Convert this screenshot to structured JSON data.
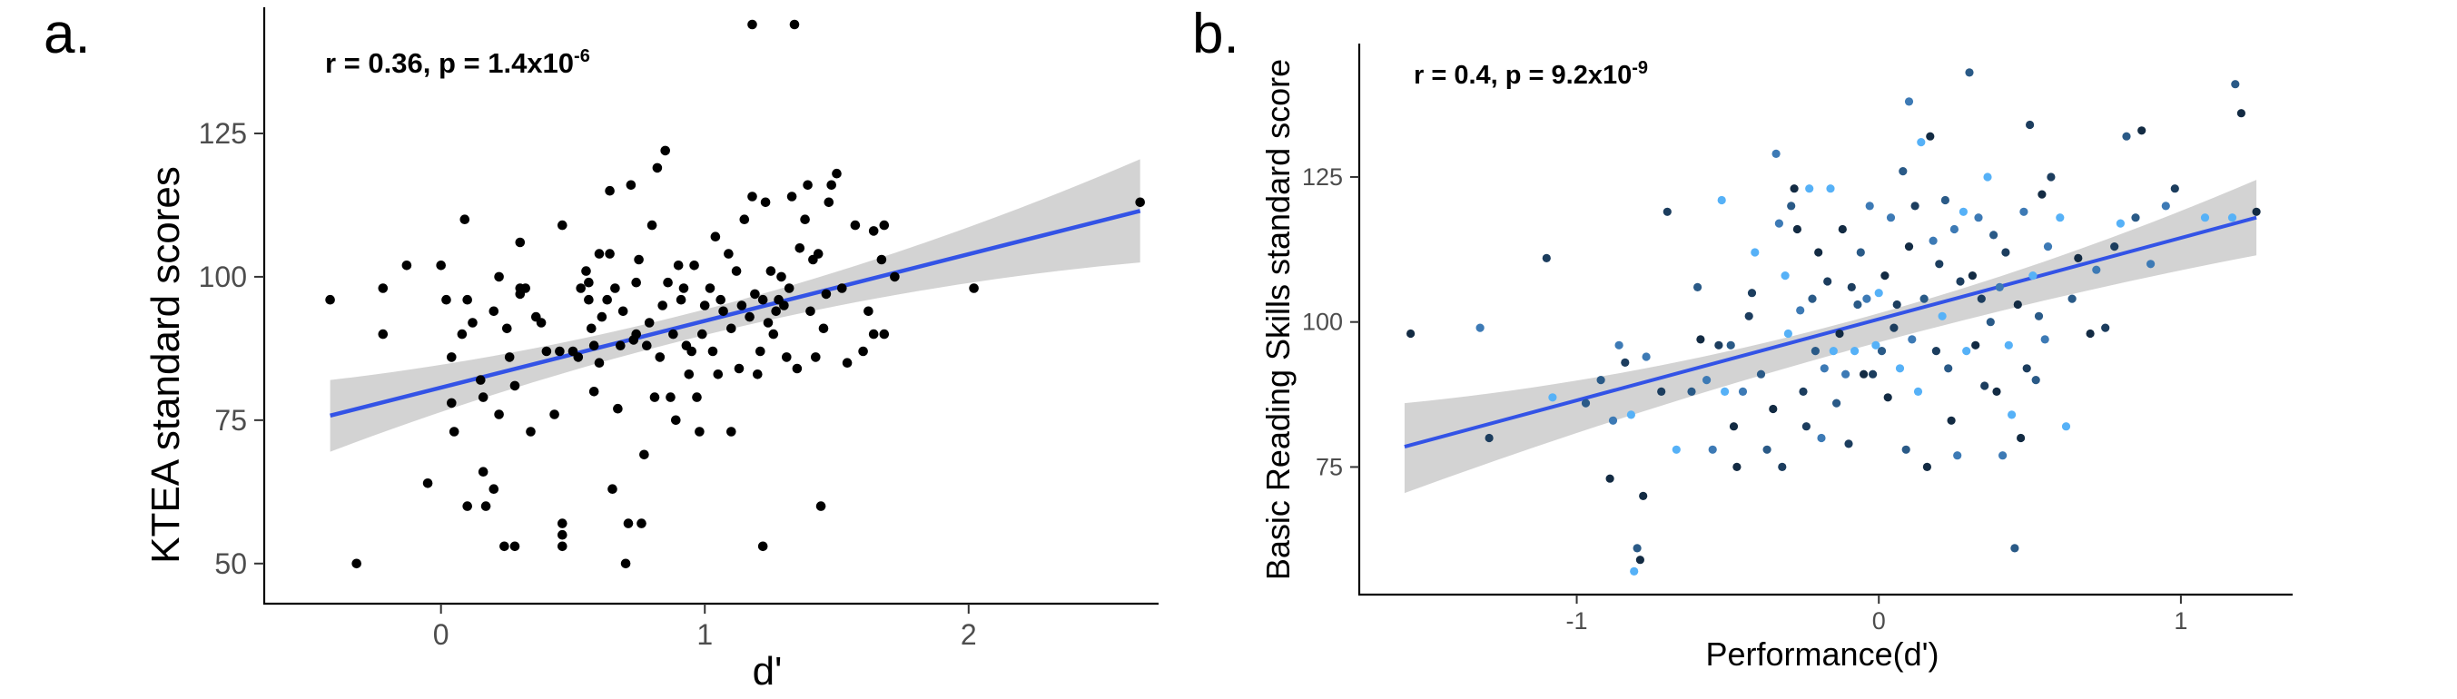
{
  "chart_data": [
    {
      "panel": "a.",
      "type": "scatter",
      "xlabel": "d'",
      "ylabel": "KTEA standard scores",
      "xlim": [
        -0.67,
        2.72
      ],
      "ylim": [
        43,
        147
      ],
      "xticks": [
        0,
        1,
        2
      ],
      "yticks": [
        50,
        75,
        100,
        125
      ],
      "annotation": {
        "main": "r = 0.36, p = 1.4x10",
        "exponent": "-6"
      },
      "fit_line": {
        "x": [
          -0.42,
          2.65
        ],
        "y": [
          75.8,
          111.5
        ]
      },
      "ci_band": {
        "x": [
          -0.42,
          0.8,
          2.65
        ],
        "upper": [
          82,
          92,
          120.5
        ],
        "lower": [
          69.5,
          87.5,
          102.5
        ]
      },
      "point_color": "#000000",
      "line_color": "#3353e6",
      "band_color": "#d3d3d3",
      "grid": false,
      "points": [
        [
          -0.42,
          96
        ],
        [
          -0.32,
          50
        ],
        [
          -0.22,
          98
        ],
        [
          -0.22,
          90
        ],
        [
          -0.13,
          102
        ],
        [
          0.0,
          102
        ],
        [
          0.02,
          96
        ],
        [
          0.04,
          86
        ],
        [
          0.04,
          78
        ],
        [
          -0.05,
          64
        ],
        [
          0.05,
          73
        ],
        [
          0.08,
          90
        ],
        [
          0.09,
          110
        ],
        [
          0.1,
          96
        ],
        [
          0.1,
          60
        ],
        [
          0.12,
          92
        ],
        [
          0.15,
          82
        ],
        [
          0.16,
          79
        ],
        [
          0.16,
          66
        ],
        [
          0.17,
          60
        ],
        [
          0.2,
          63
        ],
        [
          0.2,
          94
        ],
        [
          0.22,
          100
        ],
        [
          0.22,
          76
        ],
        [
          0.24,
          53
        ],
        [
          0.25,
          91
        ],
        [
          0.26,
          86
        ],
        [
          0.28,
          81
        ],
        [
          0.28,
          53
        ],
        [
          0.3,
          106
        ],
        [
          0.3,
          97
        ],
        [
          0.3,
          98
        ],
        [
          0.32,
          98
        ],
        [
          0.34,
          73
        ],
        [
          0.36,
          93
        ],
        [
          0.38,
          92
        ],
        [
          0.4,
          87
        ],
        [
          0.43,
          76
        ],
        [
          0.45,
          87
        ],
        [
          0.46,
          109
        ],
        [
          0.46,
          57
        ],
        [
          0.46,
          55
        ],
        [
          0.46,
          53
        ],
        [
          0.5,
          87
        ],
        [
          0.52,
          86
        ],
        [
          0.53,
          98
        ],
        [
          0.55,
          101
        ],
        [
          0.56,
          96
        ],
        [
          0.56,
          99
        ],
        [
          0.57,
          91
        ],
        [
          0.58,
          88
        ],
        [
          0.58,
          80
        ],
        [
          0.6,
          104
        ],
        [
          0.6,
          85
        ],
        [
          0.61,
          93
        ],
        [
          0.63,
          96
        ],
        [
          0.64,
          104
        ],
        [
          0.64,
          115
        ],
        [
          0.65,
          63
        ],
        [
          0.66,
          98
        ],
        [
          0.67,
          77
        ],
        [
          0.68,
          88
        ],
        [
          0.69,
          94
        ],
        [
          0.7,
          50
        ],
        [
          0.71,
          57
        ],
        [
          0.72,
          116
        ],
        [
          0.73,
          89
        ],
        [
          0.74,
          90
        ],
        [
          0.74,
          99
        ],
        [
          0.75,
          103
        ],
        [
          0.76,
          57
        ],
        [
          0.77,
          69
        ],
        [
          0.78,
          88
        ],
        [
          0.79,
          92
        ],
        [
          0.8,
          109
        ],
        [
          0.81,
          79
        ],
        [
          0.82,
          119
        ],
        [
          0.83,
          86
        ],
        [
          0.84,
          95
        ],
        [
          0.85,
          122
        ],
        [
          0.86,
          99
        ],
        [
          0.87,
          79
        ],
        [
          0.88,
          90
        ],
        [
          0.89,
          75
        ],
        [
          0.9,
          102
        ],
        [
          0.91,
          96
        ],
        [
          0.92,
          98
        ],
        [
          0.93,
          88
        ],
        [
          0.94,
          83
        ],
        [
          0.95,
          87
        ],
        [
          0.96,
          102
        ],
        [
          0.97,
          79
        ],
        [
          0.98,
          73
        ],
        [
          0.99,
          90
        ],
        [
          1.0,
          95
        ],
        [
          1.02,
          98
        ],
        [
          1.03,
          87
        ],
        [
          1.04,
          107
        ],
        [
          1.05,
          83
        ],
        [
          1.06,
          96
        ],
        [
          1.07,
          94
        ],
        [
          1.09,
          104
        ],
        [
          1.1,
          73
        ],
        [
          1.1,
          91
        ],
        [
          1.12,
          101
        ],
        [
          1.13,
          84
        ],
        [
          1.14,
          95
        ],
        [
          1.15,
          110
        ],
        [
          1.17,
          93
        ],
        [
          1.18,
          144
        ],
        [
          1.18,
          114
        ],
        [
          1.19,
          97
        ],
        [
          1.2,
          83
        ],
        [
          1.21,
          87
        ],
        [
          1.22,
          96
        ],
        [
          1.22,
          53
        ],
        [
          1.23,
          113
        ],
        [
          1.24,
          92
        ],
        [
          1.25,
          101
        ],
        [
          1.26,
          90
        ],
        [
          1.27,
          94
        ],
        [
          1.28,
          96
        ],
        [
          1.29,
          100
        ],
        [
          1.3,
          95
        ],
        [
          1.31,
          86
        ],
        [
          1.32,
          98
        ],
        [
          1.33,
          114
        ],
        [
          1.34,
          144
        ],
        [
          1.35,
          84
        ],
        [
          1.36,
          105
        ],
        [
          1.38,
          110
        ],
        [
          1.39,
          116
        ],
        [
          1.4,
          94
        ],
        [
          1.41,
          103
        ],
        [
          1.42,
          86
        ],
        [
          1.43,
          104
        ],
        [
          1.44,
          60
        ],
        [
          1.45,
          91
        ],
        [
          1.46,
          97
        ],
        [
          1.47,
          113
        ],
        [
          1.48,
          116
        ],
        [
          1.5,
          118
        ],
        [
          1.52,
          98
        ],
        [
          1.54,
          85
        ],
        [
          1.57,
          109
        ],
        [
          1.6,
          87
        ],
        [
          1.62,
          94
        ],
        [
          1.64,
          90
        ],
        [
          1.64,
          108
        ],
        [
          1.67,
          103
        ],
        [
          1.68,
          90
        ],
        [
          1.68,
          109
        ],
        [
          1.72,
          100
        ],
        [
          2.02,
          98
        ],
        [
          2.65,
          113
        ]
      ]
    },
    {
      "panel": "b.",
      "type": "scatter",
      "xlabel": "Performance(d')",
      "ylabel": "Basic Reading Skills standard score",
      "xlim": [
        -1.72,
        1.37
      ],
      "ylim": [
        53,
        148
      ],
      "xticks": [
        -1,
        0,
        1
      ],
      "yticks": [
        75,
        100,
        125
      ],
      "annotation": {
        "main": "r = 0.4, p = 9.2x10",
        "exponent": "-9"
      },
      "fit_line": {
        "x": [
          -1.57,
          1.25
        ],
        "y": [
          78.5,
          118
        ]
      },
      "ci_band": {
        "x": [
          -1.57,
          0.0,
          1.25
        ],
        "upper": [
          86,
          101.5,
          124.5
        ],
        "lower": [
          70.5,
          96.5,
          111.5
        ]
      },
      "point_colors": [
        "#132b43",
        "#1c3d5e",
        "#2a5a87",
        "#3d7ab5",
        "#56b1f7"
      ],
      "line_color": "#3353e6",
      "band_color": "#d3d3d3",
      "grid": false,
      "points": [
        [
          -1.55,
          98
        ],
        [
          -1.32,
          99
        ],
        [
          -1.29,
          80
        ],
        [
          -1.1,
          111
        ],
        [
          -1.08,
          87
        ],
        [
          -0.97,
          86
        ],
        [
          -0.92,
          90
        ],
        [
          -0.89,
          73
        ],
        [
          -0.88,
          83
        ],
        [
          -0.86,
          96
        ],
        [
          -0.84,
          93
        ],
        [
          -0.82,
          84
        ],
        [
          -0.81,
          57
        ],
        [
          -0.8,
          61
        ],
        [
          -0.79,
          59
        ],
        [
          -0.78,
          70
        ],
        [
          -0.77,
          94
        ],
        [
          -0.72,
          88
        ],
        [
          -0.7,
          119
        ],
        [
          -0.67,
          78
        ],
        [
          -0.62,
          88
        ],
        [
          -0.6,
          106
        ],
        [
          -0.59,
          97
        ],
        [
          -0.57,
          90
        ],
        [
          -0.55,
          78
        ],
        [
          -0.53,
          96
        ],
        [
          -0.52,
          121
        ],
        [
          -0.51,
          88
        ],
        [
          -0.49,
          96
        ],
        [
          -0.48,
          82
        ],
        [
          -0.47,
          75
        ],
        [
          -0.45,
          88
        ],
        [
          -0.43,
          101
        ],
        [
          -0.42,
          105
        ],
        [
          -0.41,
          112
        ],
        [
          -0.39,
          91
        ],
        [
          -0.37,
          78
        ],
        [
          -0.35,
          85
        ],
        [
          -0.34,
          129
        ],
        [
          -0.33,
          117
        ],
        [
          -0.32,
          75
        ],
        [
          -0.31,
          108
        ],
        [
          -0.3,
          98
        ],
        [
          -0.29,
          120
        ],
        [
          -0.28,
          123
        ],
        [
          -0.27,
          116
        ],
        [
          -0.26,
          102
        ],
        [
          -0.25,
          88
        ],
        [
          -0.24,
          82
        ],
        [
          -0.23,
          123
        ],
        [
          -0.22,
          104
        ],
        [
          -0.21,
          95
        ],
        [
          -0.2,
          112
        ],
        [
          -0.19,
          80
        ],
        [
          -0.18,
          92
        ],
        [
          -0.17,
          107
        ],
        [
          -0.16,
          123
        ],
        [
          -0.15,
          95
        ],
        [
          -0.14,
          86
        ],
        [
          -0.13,
          98
        ],
        [
          -0.12,
          116
        ],
        [
          -0.11,
          91
        ],
        [
          -0.1,
          79
        ],
        [
          -0.09,
          106
        ],
        [
          -0.08,
          95
        ],
        [
          -0.07,
          103
        ],
        [
          -0.06,
          112
        ],
        [
          -0.05,
          91
        ],
        [
          -0.04,
          104
        ],
        [
          -0.03,
          120
        ],
        [
          -0.02,
          91
        ],
        [
          -0.01,
          96
        ],
        [
          0.0,
          105
        ],
        [
          0.01,
          95
        ],
        [
          0.02,
          108
        ],
        [
          0.03,
          87
        ],
        [
          0.04,
          118
        ],
        [
          0.05,
          99
        ],
        [
          0.06,
          103
        ],
        [
          0.07,
          92
        ],
        [
          0.08,
          126
        ],
        [
          0.09,
          78
        ],
        [
          0.1,
          113
        ],
        [
          0.1,
          138
        ],
        [
          0.11,
          97
        ],
        [
          0.12,
          120
        ],
        [
          0.13,
          88
        ],
        [
          0.14,
          131
        ],
        [
          0.15,
          104
        ],
        [
          0.16,
          75
        ],
        [
          0.17,
          132
        ],
        [
          0.18,
          114
        ],
        [
          0.19,
          95
        ],
        [
          0.2,
          110
        ],
        [
          0.21,
          101
        ],
        [
          0.22,
          121
        ],
        [
          0.23,
          92
        ],
        [
          0.24,
          83
        ],
        [
          0.25,
          116
        ],
        [
          0.26,
          77
        ],
        [
          0.27,
          107
        ],
        [
          0.28,
          119
        ],
        [
          0.29,
          95
        ],
        [
          0.3,
          143
        ],
        [
          0.31,
          108
        ],
        [
          0.32,
          96
        ],
        [
          0.33,
          118
        ],
        [
          0.34,
          104
        ],
        [
          0.35,
          89
        ],
        [
          0.36,
          125
        ],
        [
          0.37,
          100
        ],
        [
          0.38,
          115
        ],
        [
          0.39,
          88
        ],
        [
          0.4,
          106
        ],
        [
          0.41,
          77
        ],
        [
          0.42,
          112
        ],
        [
          0.43,
          96
        ],
        [
          0.44,
          84
        ],
        [
          0.45,
          61
        ],
        [
          0.46,
          103
        ],
        [
          0.47,
          80
        ],
        [
          0.48,
          119
        ],
        [
          0.49,
          92
        ],
        [
          0.5,
          134
        ],
        [
          0.51,
          108
        ],
        [
          0.52,
          90
        ],
        [
          0.53,
          101
        ],
        [
          0.54,
          122
        ],
        [
          0.55,
          97
        ],
        [
          0.56,
          113
        ],
        [
          0.57,
          125
        ],
        [
          0.6,
          118
        ],
        [
          0.62,
          82
        ],
        [
          0.64,
          104
        ],
        [
          0.66,
          111
        ],
        [
          0.7,
          98
        ],
        [
          0.72,
          109
        ],
        [
          0.75,
          99
        ],
        [
          0.78,
          113
        ],
        [
          0.8,
          117
        ],
        [
          0.82,
          132
        ],
        [
          0.85,
          118
        ],
        [
          0.87,
          133
        ],
        [
          0.9,
          110
        ],
        [
          0.95,
          120
        ],
        [
          0.98,
          123
        ],
        [
          1.08,
          118
        ],
        [
          1.17,
          118
        ],
        [
          1.18,
          141
        ],
        [
          1.2,
          136
        ],
        [
          1.25,
          119
        ]
      ]
    }
  ]
}
